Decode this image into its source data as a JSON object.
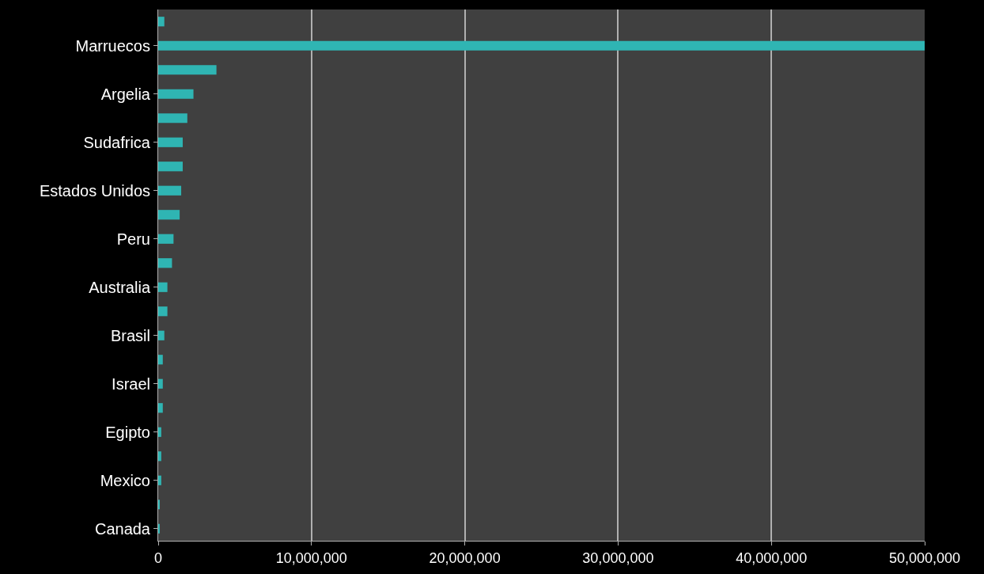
{
  "chart_data": {
    "type": "bar",
    "orientation": "horizontal",
    "categories": [
      null,
      "Marruecos",
      null,
      "Argelia",
      null,
      "Sudafrica",
      null,
      "Estados Unidos",
      null,
      "Peru",
      null,
      "Australia",
      null,
      "Brasil",
      null,
      "Israel",
      null,
      "Egipto",
      null,
      "Mexico",
      null,
      "Canada"
    ],
    "values": [
      400000,
      50000000,
      3800000,
      2300000,
      1900000,
      1600000,
      1600000,
      1500000,
      1400000,
      1000000,
      900000,
      600000,
      600000,
      400000,
      300000,
      300000,
      300000,
      200000,
      200000,
      200000,
      100000,
      100000
    ],
    "color": "#2fb5b3",
    "xlim": [
      0,
      50000000
    ],
    "xticks": [
      0,
      {
        "value": 10000000,
        "label": "10,000,000"
      },
      {
        "value": 20000000,
        "label": "20,000,000"
      },
      {
        "value": 30000000,
        "label": "30,000,000"
      },
      {
        "value": 40000000,
        "label": "40,000,000"
      },
      {
        "value": 50000000,
        "label": "50,000,000"
      }
    ],
    "grid": "x",
    "legend": false
  }
}
